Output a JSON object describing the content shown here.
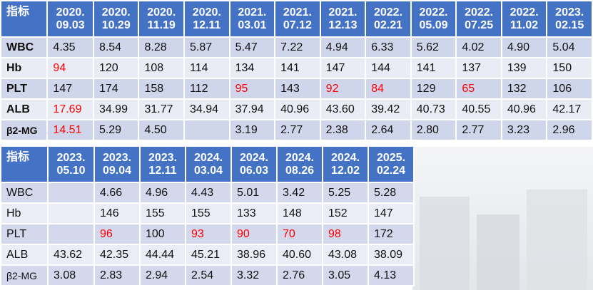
{
  "table1": {
    "header_label": "指标",
    "dates": [
      [
        "2020.",
        "09.03"
      ],
      [
        "2020.",
        "10.29"
      ],
      [
        "2020.",
        "11.19"
      ],
      [
        "2020.",
        "12.11"
      ],
      [
        "2021.",
        "03.01"
      ],
      [
        "2021.",
        "07.12"
      ],
      [
        "2021.",
        "12.13"
      ],
      [
        "2022.",
        "02.21"
      ],
      [
        "2022.",
        "05.09"
      ],
      [
        "2022.",
        "07.25"
      ],
      [
        "2022.",
        "11.02"
      ],
      [
        "2023.",
        "02.15"
      ]
    ],
    "rows": [
      {
        "label": "WBC",
        "values": [
          "4.35",
          "8.54",
          "8.28",
          "5.87",
          "5.47",
          "7.22",
          "4.94",
          "6.33",
          "5.62",
          "4.02",
          "4.90",
          "5.04"
        ],
        "red": []
      },
      {
        "label": "Hb",
        "values": [
          "94",
          "120",
          "108",
          "114",
          "134",
          "141",
          "147",
          "144",
          "141",
          "137",
          "139",
          "150"
        ],
        "red": [
          0
        ]
      },
      {
        "label": "PLT",
        "values": [
          "147",
          "174",
          "158",
          "112",
          "95",
          "143",
          "92",
          "84",
          "129",
          "65",
          "132",
          "106"
        ],
        "red": [
          4,
          6,
          7,
          9
        ]
      },
      {
        "label": "ALB",
        "values": [
          "17.69",
          "34.99",
          "31.77",
          "34.94",
          "37.94",
          "40.96",
          "43.60",
          "39.42",
          "40.73",
          "40.55",
          "40.96",
          "42.17"
        ],
        "red": [
          0
        ]
      },
      {
        "label": "β2-MG",
        "values": [
          "14.51",
          "5.29",
          "4.50",
          "",
          "3.19",
          "2.77",
          "2.38",
          "2.64",
          "2.80",
          "2.77",
          "3.23",
          "2.96"
        ],
        "red": [
          0
        ]
      }
    ]
  },
  "table2": {
    "header_label": "指标",
    "dates": [
      [
        "2023.",
        "05.10"
      ],
      [
        "2023.",
        "09.04"
      ],
      [
        "2023.",
        "12.11"
      ],
      [
        "2024.",
        "03.04"
      ],
      [
        "2024.",
        "06.03"
      ],
      [
        "2024.",
        "08.26"
      ],
      [
        "2024.",
        "12.02"
      ],
      [
        "2025.",
        "02.24"
      ]
    ],
    "rows": [
      {
        "label": "WBC",
        "values": [
          "",
          "4.66",
          "4.96",
          "4.43",
          "5.01",
          "3.42",
          "5.25",
          "5.28"
        ],
        "red": []
      },
      {
        "label": "Hb",
        "values": [
          "",
          "146",
          "155",
          "155",
          "133",
          "148",
          "152",
          "147"
        ],
        "red": []
      },
      {
        "label": "PLT",
        "values": [
          "",
          "96",
          "100",
          "93",
          "90",
          "70",
          "98",
          "172"
        ],
        "red": [
          1,
          3,
          4,
          5,
          6
        ]
      },
      {
        "label": "ALB",
        "values": [
          "43.62",
          "42.35",
          "44.44",
          "45.21",
          "38.96",
          "40.60",
          "43.08",
          "38.09"
        ],
        "red": []
      },
      {
        "label": "β2-MG",
        "values": [
          "3.08",
          "2.83",
          "2.94",
          "2.54",
          "3.32",
          "2.76",
          "3.05",
          "4.13"
        ],
        "red": []
      }
    ]
  },
  "colors": {
    "header_bg": "#4472c4",
    "row_odd": "#cfd5ea",
    "row_even": "#e9ebf5",
    "highlight": "#ff0000"
  }
}
